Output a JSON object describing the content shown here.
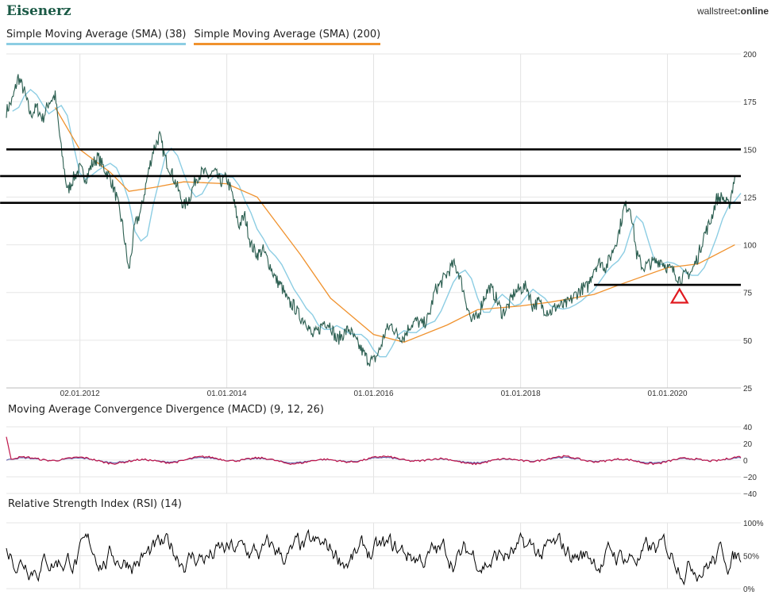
{
  "header": {
    "title": "Eisenerz",
    "brand_pre": "wallstreet",
    "brand_sep": ":",
    "brand_post": "online"
  },
  "legend": [
    {
      "label": "Simple Moving Average (SMA) (38)",
      "color": "#8ccde3"
    },
    {
      "label": "Simple Moving Average (SMA) (200)",
      "color": "#f0922e"
    }
  ],
  "chart_data": [
    {
      "type": "line",
      "name": "price",
      "ylim": [
        25,
        200
      ],
      "yticks": [
        200,
        175,
        150,
        125,
        100,
        75,
        50,
        25
      ],
      "xlim": [
        "2011-01-01",
        "2020-12-31"
      ],
      "xticks": [
        "02.01.2012",
        "01.01.2014",
        "01.01.2016",
        "01.01.2018",
        "01.01.2020"
      ],
      "colors": {
        "price": "#2b5e50",
        "sma38": "#8ccde3",
        "sma200": "#f0922e",
        "lines": "#000000",
        "marker": "#e0191f"
      },
      "price_points": [
        [
          "2011-01-01",
          170
        ],
        [
          "2011-02-01",
          176
        ],
        [
          "2011-03-01",
          188
        ],
        [
          "2011-04-01",
          180
        ],
        [
          "2011-05-01",
          168
        ],
        [
          "2011-06-01",
          172
        ],
        [
          "2011-07-01",
          166
        ],
        [
          "2011-08-01",
          175
        ],
        [
          "2011-09-01",
          178
        ],
        [
          "2011-10-01",
          150
        ],
        [
          "2011-11-01",
          128
        ],
        [
          "2011-12-01",
          135
        ],
        [
          "2012-01-01",
          140
        ],
        [
          "2012-02-01",
          135
        ],
        [
          "2012-03-01",
          142
        ],
        [
          "2012-04-01",
          146
        ],
        [
          "2012-05-01",
          140
        ],
        [
          "2012-06-01",
          135
        ],
        [
          "2012-07-01",
          125
        ],
        [
          "2012-08-01",
          110
        ],
        [
          "2012-09-01",
          86
        ],
        [
          "2012-10-01",
          110
        ],
        [
          "2012-11-01",
          118
        ],
        [
          "2012-12-01",
          135
        ],
        [
          "2013-01-01",
          150
        ],
        [
          "2013-02-01",
          157
        ],
        [
          "2013-03-01",
          145
        ],
        [
          "2013-04-01",
          138
        ],
        [
          "2013-05-01",
          130
        ],
        [
          "2013-06-01",
          120
        ],
        [
          "2013-07-01",
          125
        ],
        [
          "2013-08-01",
          135
        ],
        [
          "2013-09-01",
          138
        ],
        [
          "2013-10-01",
          136
        ],
        [
          "2013-11-01",
          138
        ],
        [
          "2013-12-01",
          133
        ],
        [
          "2014-01-01",
          135
        ],
        [
          "2014-02-01",
          125
        ],
        [
          "2014-03-01",
          110
        ],
        [
          "2014-04-01",
          115
        ],
        [
          "2014-05-01",
          100
        ],
        [
          "2014-06-01",
          95
        ],
        [
          "2014-07-01",
          97
        ],
        [
          "2014-08-01",
          90
        ],
        [
          "2014-09-01",
          82
        ],
        [
          "2014-10-01",
          78
        ],
        [
          "2014-11-01",
          70
        ],
        [
          "2014-12-01",
          68
        ],
        [
          "2015-01-01",
          62
        ],
        [
          "2015-02-01",
          60
        ],
        [
          "2015-03-01",
          52
        ],
        [
          "2015-04-01",
          55
        ],
        [
          "2015-05-01",
          60
        ],
        [
          "2015-06-01",
          58
        ],
        [
          "2015-07-01",
          50
        ],
        [
          "2015-08-01",
          53
        ],
        [
          "2015-09-01",
          56
        ],
        [
          "2015-10-01",
          50
        ],
        [
          "2015-11-01",
          45
        ],
        [
          "2015-12-01",
          40
        ],
        [
          "2016-01-01",
          39
        ],
        [
          "2016-02-01",
          45
        ],
        [
          "2016-03-01",
          55
        ],
        [
          "2016-04-01",
          58
        ],
        [
          "2016-05-01",
          52
        ],
        [
          "2016-06-01",
          52
        ],
        [
          "2016-07-01",
          58
        ],
        [
          "2016-08-01",
          60
        ],
        [
          "2016-09-01",
          58
        ],
        [
          "2016-10-01",
          62
        ],
        [
          "2016-11-01",
          76
        ],
        [
          "2016-12-01",
          80
        ],
        [
          "2017-01-01",
          85
        ],
        [
          "2017-02-01",
          90
        ],
        [
          "2017-03-01",
          85
        ],
        [
          "2017-04-01",
          72
        ],
        [
          "2017-05-01",
          60
        ],
        [
          "2017-06-01",
          62
        ],
        [
          "2017-07-01",
          72
        ],
        [
          "2017-08-01",
          78
        ],
        [
          "2017-09-01",
          72
        ],
        [
          "2017-10-01",
          64
        ],
        [
          "2017-11-01",
          68
        ],
        [
          "2017-12-01",
          75
        ],
        [
          "2018-01-01",
          77
        ],
        [
          "2018-02-01",
          78
        ],
        [
          "2018-03-01",
          68
        ],
        [
          "2018-04-01",
          70
        ],
        [
          "2018-05-01",
          66
        ],
        [
          "2018-06-01",
          65
        ],
        [
          "2018-07-01",
          68
        ],
        [
          "2018-08-01",
          68
        ],
        [
          "2018-09-01",
          70
        ],
        [
          "2018-10-01",
          74
        ],
        [
          "2018-11-01",
          77
        ],
        [
          "2018-12-01",
          78
        ],
        [
          "2019-01-01",
          88
        ],
        [
          "2019-02-01",
          91
        ],
        [
          "2019-03-01",
          88
        ],
        [
          "2019-04-01",
          96
        ],
        [
          "2019-05-01",
          105
        ],
        [
          "2019-06-01",
          120
        ],
        [
          "2019-07-01",
          120
        ],
        [
          "2019-08-01",
          95
        ],
        [
          "2019-09-01",
          88
        ],
        [
          "2019-10-01",
          90
        ],
        [
          "2019-11-01",
          91
        ],
        [
          "2019-12-01",
          92
        ],
        [
          "2020-01-01",
          88
        ],
        [
          "2020-02-01",
          86
        ],
        [
          "2020-03-01",
          82
        ],
        [
          "2020-04-01",
          84
        ],
        [
          "2020-05-01",
          86
        ],
        [
          "2020-06-01",
          94
        ],
        [
          "2020-07-01",
          105
        ],
        [
          "2020-08-01",
          112
        ],
        [
          "2020-09-01",
          124
        ],
        [
          "2020-10-01",
          125
        ],
        [
          "2020-11-01",
          120
        ],
        [
          "2020-12-01",
          136
        ]
      ],
      "sma200_points": [
        [
          "2011-09-01",
          172
        ],
        [
          "2012-01-01",
          150
        ],
        [
          "2012-06-01",
          138
        ],
        [
          "2012-09-01",
          128
        ],
        [
          "2013-01-01",
          130
        ],
        [
          "2013-06-01",
          133
        ],
        [
          "2014-01-01",
          132
        ],
        [
          "2014-06-01",
          125
        ],
        [
          "2015-01-01",
          95
        ],
        [
          "2015-06-01",
          72
        ],
        [
          "2016-01-01",
          53
        ],
        [
          "2016-06-01",
          49
        ],
        [
          "2017-01-01",
          58
        ],
        [
          "2017-06-01",
          66
        ],
        [
          "2018-01-01",
          68
        ],
        [
          "2018-06-01",
          70
        ],
        [
          "2019-01-01",
          74
        ],
        [
          "2019-06-01",
          80
        ],
        [
          "2020-01-01",
          88
        ],
        [
          "2020-06-01",
          90
        ],
        [
          "2020-12-01",
          100
        ]
      ],
      "sma38_lag_months": 2,
      "horizontal_lines": [
        {
          "y": 150,
          "from": "2011-01-01",
          "to": "2020-12-31"
        },
        {
          "y": 136,
          "from": "2010-12-01",
          "to": "2020-12-31"
        },
        {
          "y": 122,
          "from": "2010-12-01",
          "to": "2020-12-31"
        },
        {
          "y": 79,
          "from": "2019-01-01",
          "to": "2020-12-31"
        }
      ],
      "marker": {
        "shape": "triangle-up",
        "x": "2020-03-01",
        "y": 73
      }
    },
    {
      "type": "line",
      "name": "macd",
      "label": "Moving Average Convergence Divergence (MACD) (9, 12, 26)",
      "ylim": [
        -40,
        40
      ],
      "yticks": [
        40,
        20,
        0,
        -20,
        -40
      ],
      "colors": {
        "macd": "#c0164b",
        "signal": "#5a5aa8",
        "hist": "#b9c2e3"
      }
    },
    {
      "type": "line",
      "name": "rsi",
      "label": "Relative Strength Index (RSI) (14)",
      "ylim": [
        0,
        100
      ],
      "yticks": [
        "100%",
        "50%",
        "0%"
      ],
      "colors": {
        "rsi": "#000000"
      }
    }
  ]
}
